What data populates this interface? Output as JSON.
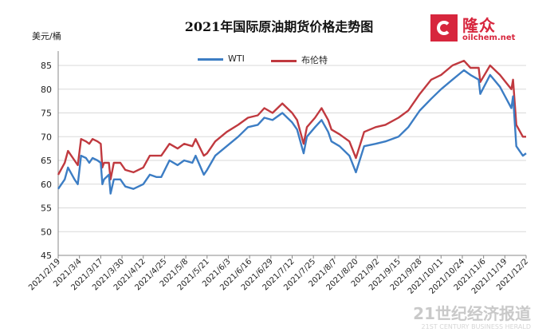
{
  "title": "2021年国际原油期货价格走势图",
  "logo": {
    "cn": "隆众",
    "en": "oilchem.net"
  },
  "watermark": {
    "cn": "21世纪经济报道",
    "en": "21ST CENTURY BUSINESS HERALD"
  },
  "colors": {
    "wti": "#3c7dc4",
    "brent": "#c0393f",
    "grid": "#d9d9d9",
    "axis": "#888888",
    "logo": "#d7263d"
  },
  "chart_data": {
    "type": "line",
    "title": "2021年国际原油期货价格走势图",
    "ylabel": "美元/桶",
    "ylim": [
      45,
      85
    ],
    "yticks": [
      45,
      50,
      55,
      60,
      65,
      70,
      75,
      80,
      85
    ],
    "xlim": [
      "2021-02-19",
      "2021-12-02"
    ],
    "xtick_labels": [
      "2021/2/19",
      "2021/3/4",
      "2021/3/17",
      "2021/3/30",
      "2021/4/12",
      "2021/4/25",
      "2021/5/8",
      "2021/5/21",
      "2021/6/3",
      "2021/6/16",
      "2021/6/29",
      "2021/7/12",
      "2021/7/25",
      "2021/8/7",
      "2021/8/20",
      "2021/9/2",
      "2021/9/15",
      "2021/9/28",
      "2021/10/11",
      "2021/10/24",
      "2021/11/6",
      "2021/11/19",
      "2021/12/2"
    ],
    "grid": "horizontal",
    "legend_position": "top-center",
    "series": [
      {
        "name": "WTI",
        "color": "#3c7dc4",
        "x": [
          "2021-02-19",
          "2021-02-23",
          "2021-02-25",
          "2021-03-01",
          "2021-03-03",
          "2021-03-05",
          "2021-03-08",
          "2021-03-10",
          "2021-03-12",
          "2021-03-15",
          "2021-03-17",
          "2021-03-18",
          "2021-03-19",
          "2021-03-22",
          "2021-03-23",
          "2021-03-25",
          "2021-03-29",
          "2021-04-01",
          "2021-04-06",
          "2021-04-12",
          "2021-04-16",
          "2021-04-20",
          "2021-04-23",
          "2021-04-28",
          "2021-05-03",
          "2021-05-07",
          "2021-05-12",
          "2021-05-14",
          "2021-05-19",
          "2021-05-21",
          "2021-05-26",
          "2021-06-02",
          "2021-06-09",
          "2021-06-15",
          "2021-06-21",
          "2021-06-25",
          "2021-06-30",
          "2021-07-06",
          "2021-07-12",
          "2021-07-15",
          "2021-07-19",
          "2021-07-21",
          "2021-07-26",
          "2021-07-30",
          "2021-08-03",
          "2021-08-05",
          "2021-08-10",
          "2021-08-16",
          "2021-08-20",
          "2021-08-25",
          "2021-09-01",
          "2021-09-07",
          "2021-09-15",
          "2021-09-21",
          "2021-09-28",
          "2021-10-05",
          "2021-10-11",
          "2021-10-18",
          "2021-10-25",
          "2021-10-29",
          "2021-11-03",
          "2021-11-04",
          "2021-11-10",
          "2021-11-16",
          "2021-11-23",
          "2021-11-24",
          "2021-11-26",
          "2021-11-30",
          "2021-12-02"
        ],
        "y": [
          59,
          61,
          63.5,
          61,
          60,
          66,
          65.5,
          64.5,
          65.5,
          65,
          64.5,
          60,
          61,
          62,
          58,
          61,
          61,
          59.5,
          59,
          60,
          62,
          61.5,
          61.5,
          65,
          64,
          65,
          64.5,
          66,
          62,
          63,
          66,
          68,
          70,
          72,
          72.5,
          74,
          73.5,
          75,
          73,
          71.5,
          66.5,
          70,
          72,
          73.5,
          71,
          69,
          68,
          66,
          62.5,
          68,
          68.5,
          69,
          70,
          72,
          75.5,
          78,
          80,
          82,
          84,
          83,
          82,
          79,
          83,
          80.5,
          76,
          78.5,
          68,
          66,
          66.5
        ]
      },
      {
        "name": "布伦特",
        "color": "#c0393f",
        "x": [
          "2021-02-19",
          "2021-02-23",
          "2021-02-25",
          "2021-03-01",
          "2021-03-03",
          "2021-03-05",
          "2021-03-08",
          "2021-03-10",
          "2021-03-12",
          "2021-03-15",
          "2021-03-17",
          "2021-03-18",
          "2021-03-19",
          "2021-03-22",
          "2021-03-23",
          "2021-03-25",
          "2021-03-29",
          "2021-04-01",
          "2021-04-06",
          "2021-04-12",
          "2021-04-16",
          "2021-04-20",
          "2021-04-23",
          "2021-04-28",
          "2021-05-03",
          "2021-05-07",
          "2021-05-12",
          "2021-05-14",
          "2021-05-19",
          "2021-05-21",
          "2021-05-26",
          "2021-06-02",
          "2021-06-09",
          "2021-06-15",
          "2021-06-21",
          "2021-06-25",
          "2021-06-30",
          "2021-07-06",
          "2021-07-12",
          "2021-07-15",
          "2021-07-19",
          "2021-07-21",
          "2021-07-26",
          "2021-07-30",
          "2021-08-03",
          "2021-08-05",
          "2021-08-10",
          "2021-08-16",
          "2021-08-20",
          "2021-08-25",
          "2021-09-01",
          "2021-09-07",
          "2021-09-15",
          "2021-09-21",
          "2021-09-28",
          "2021-10-05",
          "2021-10-11",
          "2021-10-18",
          "2021-10-25",
          "2021-10-29",
          "2021-11-03",
          "2021-11-04",
          "2021-11-10",
          "2021-11-16",
          "2021-11-23",
          "2021-11-24",
          "2021-11-26",
          "2021-11-30",
          "2021-12-02"
        ],
        "y": [
          62,
          64.5,
          67,
          65,
          64,
          69.5,
          69,
          68.5,
          69.5,
          69,
          68.5,
          63.5,
          64.5,
          64.5,
          61,
          64.5,
          64.5,
          63,
          62.5,
          63.5,
          66,
          66,
          66,
          68.5,
          67.5,
          68.5,
          68,
          69.5,
          66,
          66.5,
          69,
          71,
          72.5,
          74,
          74.5,
          76,
          75,
          77,
          75,
          73.5,
          68.5,
          72,
          74,
          76,
          73.5,
          71.5,
          70.5,
          69,
          65.5,
          71,
          72,
          72.5,
          74,
          75.5,
          79,
          82,
          83,
          85,
          86,
          84.5,
          84.5,
          81.5,
          85,
          83,
          80,
          82,
          72.5,
          70,
          70
        ]
      }
    ]
  }
}
